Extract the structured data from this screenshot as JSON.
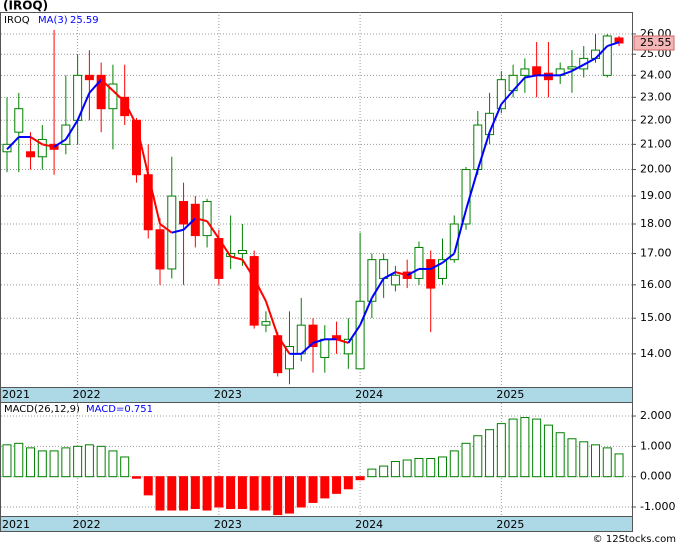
{
  "chart_data": [
    {
      "type": "candlestick",
      "title": "(IROQ)",
      "symbol": "IROQ",
      "ma_label": "MA(3)",
      "open": [
        20.7,
        21.5,
        20.7,
        20.5,
        21.0,
        21.0,
        22.0,
        24.0,
        24.0,
        22.5,
        23.0,
        22.0,
        19.8,
        17.8,
        16.5,
        18.8,
        18.7,
        17.6,
        17.5,
        16.9,
        17.0,
        16.9,
        14.8,
        14.5,
        13.6,
        14.0,
        14.8,
        13.9,
        14.5,
        14.0,
        13.6,
        15.5,
        16.2,
        16.0,
        16.4,
        16.2,
        16.8,
        16.2,
        16.8,
        18.0,
        20.0,
        21.4,
        22.5,
        23.3,
        24.0,
        24.4,
        24.1,
        24.0,
        24.3,
        24.3,
        24.8,
        24.0,
        25.8
      ],
      "high": [
        23.0,
        23.2,
        21.5,
        21.8,
        26.2,
        24.0,
        25.0,
        25.2,
        24.6,
        24.5,
        24.5,
        22.1,
        21.0,
        18.2,
        20.5,
        19.5,
        19.0,
        18.9,
        17.8,
        18.3,
        18.0,
        17.1,
        15.2,
        14.6,
        15.2,
        15.6,
        15.0,
        14.8,
        14.9,
        15.0,
        17.7,
        17.0,
        17.0,
        16.6,
        16.8,
        17.4,
        17.1,
        17.5,
        18.3,
        20.1,
        22.4,
        23.2,
        24.2,
        24.5,
        24.8,
        25.6,
        25.6,
        24.6,
        25.2,
        25.4,
        26.0,
        26.0,
        25.9
      ],
      "low": [
        19.9,
        19.9,
        20.0,
        20.0,
        19.8,
        20.6,
        21.0,
        22.0,
        21.5,
        20.8,
        21.8,
        19.5,
        17.5,
        16.0,
        16.2,
        16.0,
        17.2,
        17.2,
        16.0,
        16.5,
        16.6,
        14.7,
        14.6,
        13.4,
        13.2,
        13.8,
        13.5,
        13.5,
        14.0,
        13.6,
        13.6,
        15.0,
        15.6,
        15.8,
        15.9,
        16.0,
        14.6,
        16.0,
        16.7,
        17.8,
        19.8,
        21.0,
        22.3,
        23.0,
        23.2,
        23.0,
        23.0,
        23.6,
        23.2,
        23.9,
        24.6,
        23.9,
        25.4
      ],
      "close": [
        21.0,
        22.5,
        20.5,
        21.2,
        20.8,
        21.8,
        24.0,
        23.8,
        22.5,
        23.6,
        22.2,
        19.8,
        17.8,
        16.5,
        19.0,
        18.0,
        17.6,
        18.8,
        16.2,
        17.0,
        17.1,
        14.8,
        14.9,
        13.5,
        14.2,
        14.8,
        14.2,
        14.4,
        14.4,
        14.4,
        15.5,
        16.8,
        16.8,
        16.3,
        16.2,
        17.2,
        15.9,
        16.8,
        18.0,
        20.0,
        21.8,
        22.3,
        23.8,
        24.0,
        24.3,
        24.0,
        23.8,
        24.3,
        24.4,
        24.8,
        25.2,
        25.9,
        25.55
      ],
      "ma": [
        20.8,
        21.3,
        21.3,
        21.0,
        20.9,
        21.2,
        22.0,
        23.2,
        23.8,
        23.3,
        22.8,
        21.8,
        19.8,
        18.0,
        17.7,
        17.8,
        18.2,
        18.1,
        17.5,
        16.9,
        16.8,
        16.2,
        15.5,
        14.5,
        14.0,
        14.0,
        14.3,
        14.4,
        14.4,
        14.3,
        14.8,
        15.6,
        16.2,
        16.4,
        16.3,
        16.5,
        16.5,
        16.7,
        17.0,
        18.5,
        20.0,
        21.5,
        22.7,
        23.3,
        23.9,
        24.0,
        24.0,
        24.0,
        24.2,
        24.5,
        24.8,
        25.4,
        25.59
      ],
      "up_color": "#008000",
      "down_color": "#ff0000",
      "ma_up_color": "#0000ff",
      "ma_down_color": "#ff0000",
      "log_scale": true,
      "grid": true,
      "ylim": [
        13.13,
        27.13
      ],
      "yticks": [
        {
          "value": 14,
          "label": "14.00"
        },
        {
          "value": 15,
          "label": "15.00"
        },
        {
          "value": 16,
          "label": "16.00"
        },
        {
          "value": 17,
          "label": "17.00"
        },
        {
          "value": 18,
          "label": "18.00"
        },
        {
          "value": 19,
          "label": "19.00"
        },
        {
          "value": 20,
          "label": "20.00"
        },
        {
          "value": 21,
          "label": "21.00"
        },
        {
          "value": 22,
          "label": "22.00"
        },
        {
          "value": 23,
          "label": "23.00"
        },
        {
          "value": 24,
          "label": "24.00"
        },
        {
          "value": 25,
          "label": "25.00"
        },
        {
          "value": 26,
          "label": "26.00"
        }
      ],
      "xticks": [
        {
          "value": 0,
          "label": "2021"
        },
        {
          "value": 6,
          "label": "2022"
        },
        {
          "value": 18,
          "label": "2023"
        },
        {
          "value": 30,
          "label": "2024"
        },
        {
          "value": 42,
          "label": "2025"
        }
      ]
    },
    {
      "type": "bar",
      "title": "MACD(26,12,9)",
      "value_label": "MACD=0.751",
      "values": [
        1.05,
        1.1,
        0.95,
        0.85,
        0.85,
        0.95,
        1.0,
        1.05,
        1.0,
        0.85,
        0.65,
        -0.05,
        -0.6,
        -1.1,
        -1.1,
        -1.1,
        -1.05,
        -1.1,
        -1.0,
        -1.05,
        -1.05,
        -1.1,
        -1.1,
        -1.25,
        -1.2,
        -1.0,
        -0.85,
        -0.7,
        -0.55,
        -0.4,
        -0.1,
        0.25,
        0.35,
        0.5,
        0.55,
        0.6,
        0.6,
        0.65,
        0.85,
        1.1,
        1.35,
        1.55,
        1.75,
        1.9,
        1.95,
        1.9,
        1.7,
        1.45,
        1.25,
        1.15,
        1.05,
        0.95,
        0.751
      ],
      "up_color": "#008000",
      "down_color": "#ff0000",
      "grid": true,
      "ylim": [
        -1.33,
        2.43
      ],
      "yticks": [
        {
          "value": 2,
          "label": "2.000"
        },
        {
          "value": 1,
          "label": "1.000"
        },
        {
          "value": 0,
          "label": "0.000"
        },
        {
          "value": -1,
          "label": "-1.000"
        }
      ],
      "xticks": [
        {
          "value": 0,
          "label": "2021"
        },
        {
          "value": 6,
          "label": "2022"
        },
        {
          "value": 18,
          "label": "2023"
        },
        {
          "value": 30,
          "label": "2024"
        },
        {
          "value": 42,
          "label": "2025"
        }
      ]
    }
  ],
  "footer": "© 12Stocks.com"
}
